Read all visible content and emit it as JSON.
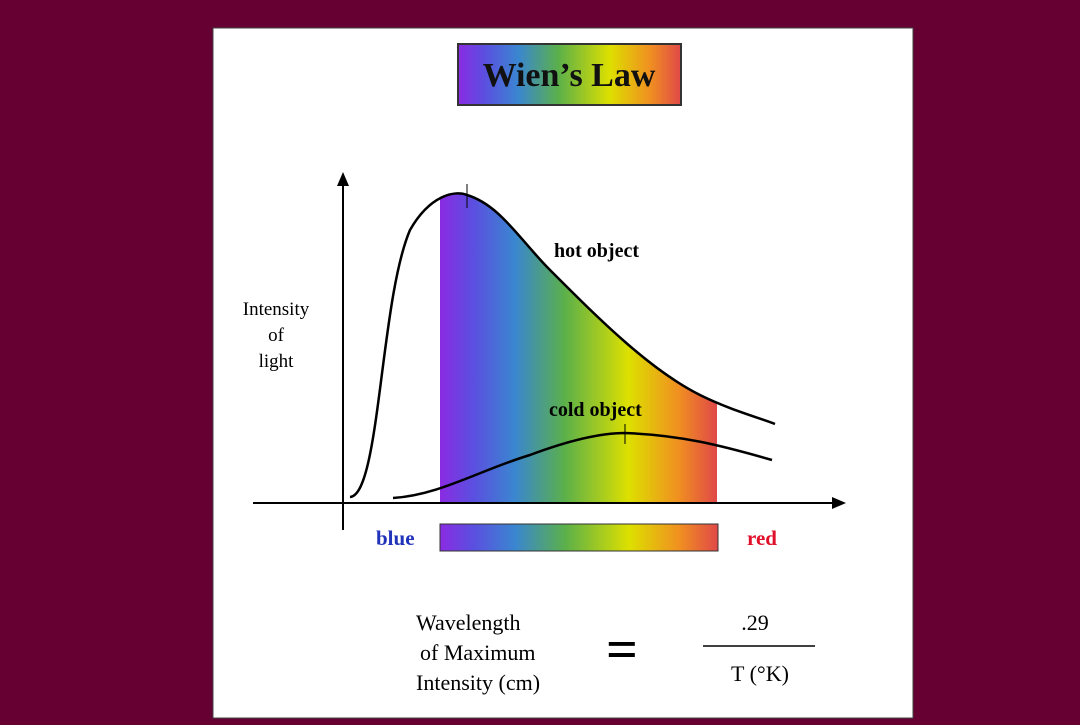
{
  "header": {
    "title": "Wien’s Law"
  },
  "graph": {
    "y_axis_label": [
      "Intensity",
      "of",
      "light"
    ],
    "curves": [
      {
        "label": "hot object"
      },
      {
        "label": "cold object"
      }
    ]
  },
  "spectrum": {
    "left": "blue",
    "right": "red"
  },
  "formula": {
    "lhs": [
      "Wavelength",
      "of Maximum",
      "Intensity (cm)"
    ],
    "equals": "=",
    "numerator": ".29",
    "denominator": "T (°K)"
  }
}
